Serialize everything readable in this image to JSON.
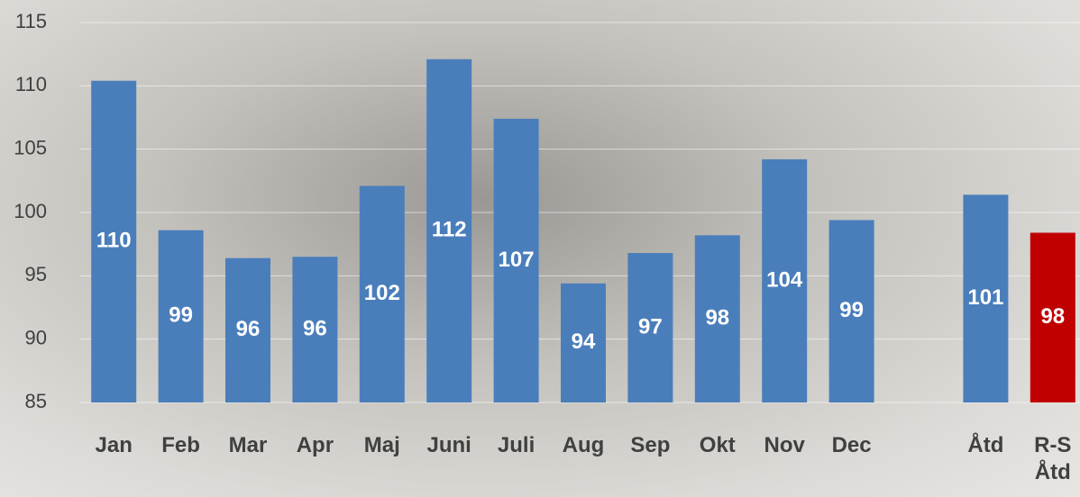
{
  "chart_data": {
    "type": "bar",
    "categories": [
      "Jan",
      "Feb",
      "Mar",
      "Apr",
      "Maj",
      "Juni",
      "Juli",
      "Aug",
      "Sep",
      "Okt",
      "Nov",
      "Dec",
      null,
      "Åtd",
      "R-S Åtd"
    ],
    "values": [
      110.4,
      98.6,
      96.4,
      96.5,
      102.1,
      112.1,
      107.4,
      94.4,
      96.8,
      98.2,
      104.2,
      99.4,
      null,
      101.4,
      98.4
    ],
    "value_labels": [
      "110",
      "99",
      "96",
      "96",
      "102",
      "112",
      "107",
      "94",
      "97",
      "98",
      "104",
      "99",
      null,
      "101",
      "98"
    ],
    "colors": [
      "#4a7ebb",
      "#4a7ebb",
      "#4a7ebb",
      "#4a7ebb",
      "#4a7ebb",
      "#4a7ebb",
      "#4a7ebb",
      "#4a7ebb",
      "#4a7ebb",
      "#4a7ebb",
      "#4a7ebb",
      "#4a7ebb",
      null,
      "#4a7ebb",
      "#c00000"
    ],
    "ylim": [
      85,
      115
    ],
    "yticks": [
      85,
      90,
      95,
      100,
      105,
      110,
      115
    ],
    "grid": true
  }
}
